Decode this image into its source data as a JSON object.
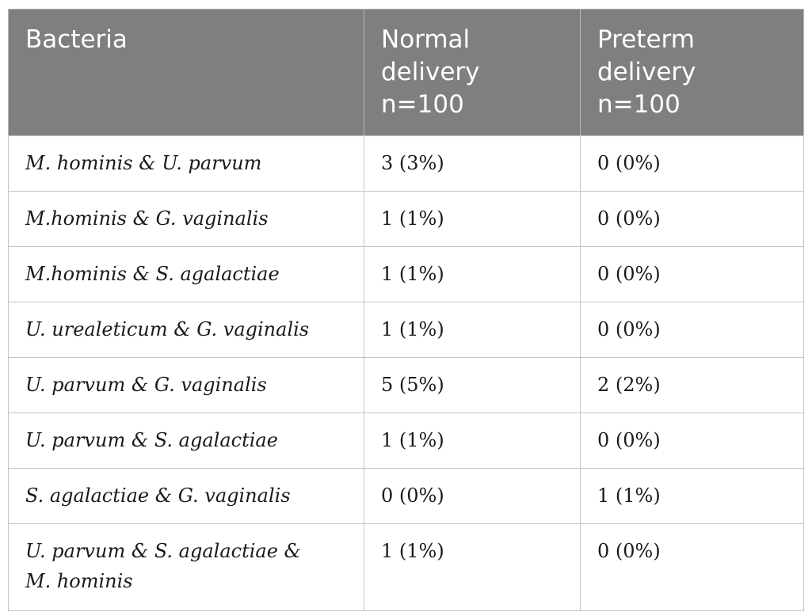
{
  "table": {
    "headers": [
      [
        "Bacteria"
      ],
      [
        "Normal",
        "delivery",
        "n=100"
      ],
      [
        "Preterm",
        "delivery",
        "n=100"
      ]
    ],
    "rows": [
      {
        "bacteria": "M. hominis & U. parvum",
        "normal": "3 (3%)",
        "preterm": "0 (0%)"
      },
      {
        "bacteria": "M.hominis & G. vaginalis",
        "normal": "1 (1%)",
        "preterm": "0 (0%)"
      },
      {
        "bacteria": "M.hominis & S. agalactiae",
        "normal": "1 (1%)",
        "preterm": "0 (0%)"
      },
      {
        "bacteria": "U. urealeticum & G. vaginalis",
        "normal": "1 (1%)",
        "preterm": "0 (0%)"
      },
      {
        "bacteria": "U. parvum & G. vaginalis",
        "normal": "5 (5%)",
        "preterm": "2 (2%)"
      },
      {
        "bacteria": "U. parvum & S. agalactiae",
        "normal": "1 (1%)",
        "preterm": "0 (0%)"
      },
      {
        "bacteria": "S. agalactiae & G. vaginalis",
        "normal": "0 (0%)",
        "preterm": "1 (1%)"
      },
      {
        "bacteria_lines": [
          "U. parvum & S. agalactiae &",
          "M. hominis"
        ],
        "normal": "1 (1%)",
        "preterm": "0 (0%)"
      }
    ]
  }
}
